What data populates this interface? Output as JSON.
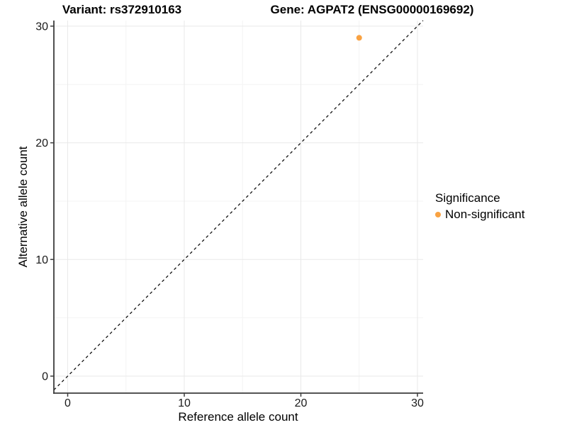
{
  "titles": {
    "variant": "Variant: rs372910163",
    "gene": "Gene: AGPAT2 (ENSG00000169692)"
  },
  "colors": {
    "point": "#F9A242",
    "grid_major": "#E9E9E9",
    "grid_minor": "#F4F4F4",
    "axis_line": "#3C3C3C",
    "tick_text": "#1a1a1a",
    "reference_line": "#111111",
    "background": "#FFFFFF"
  },
  "chart_data": {
    "type": "scatter",
    "title_left": "Variant: rs372910163",
    "title_right": "Gene: AGPAT2 (ENSG00000169692)",
    "xlabel": "Reference allele count",
    "ylabel": "Alternative allele count",
    "xlim": [
      -1.2,
      30.5
    ],
    "ylim": [
      -1.5,
      30.5
    ],
    "x_ticks": [
      0,
      10,
      20,
      30
    ],
    "y_ticks": [
      0,
      10,
      20,
      30
    ],
    "minor_tick_step": 5,
    "grid": true,
    "points": [
      {
        "x": 25,
        "y": 29,
        "series": "Non-significant"
      }
    ],
    "reference_line": {
      "type": "abline",
      "slope": 1,
      "intercept": 0,
      "style": "dashed"
    },
    "legend": {
      "title": "Significance",
      "position": "right",
      "entries": [
        {
          "label": "Non-significant",
          "color": "#F9A242"
        }
      ]
    }
  }
}
